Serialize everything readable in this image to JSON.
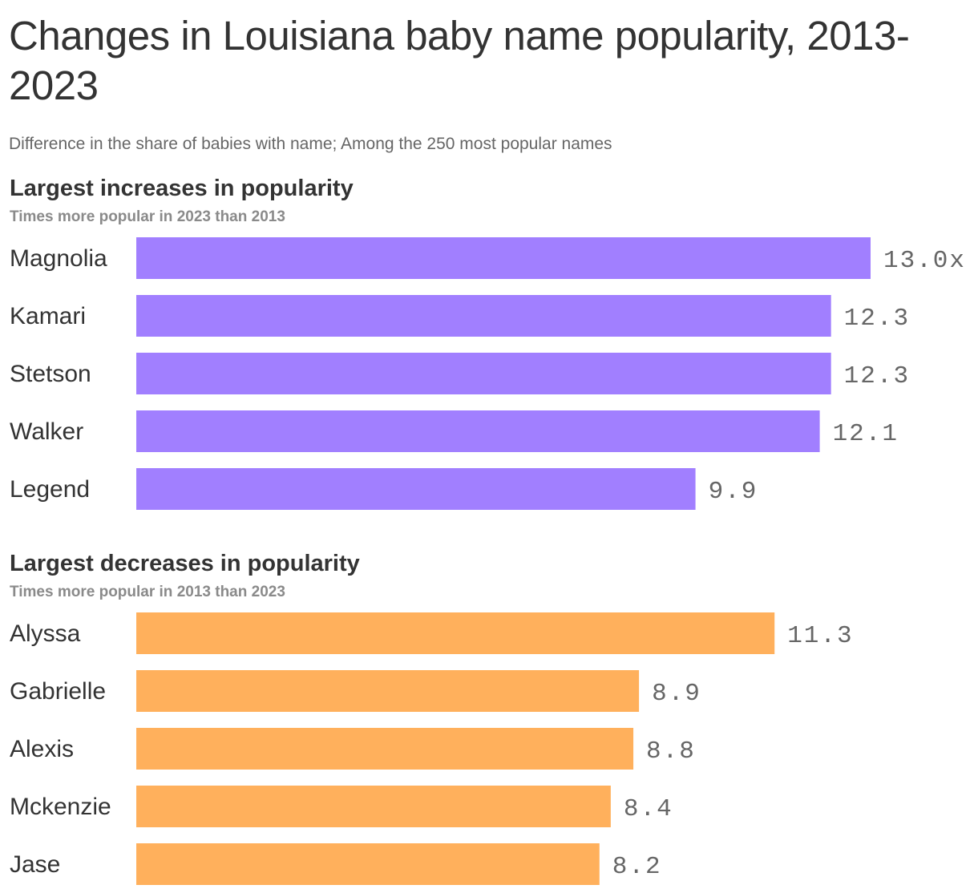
{
  "title": "Changes in Louisiana baby name popularity, 2013-2023",
  "subtitle": "Difference in the share of babies with name; Among the 250 most popular names",
  "colors": {
    "increase": "#a17fff",
    "decrease": "#ffb05c",
    "text": "#333333",
    "value_text": "#666666"
  },
  "chart_data": [
    {
      "type": "bar",
      "orientation": "horizontal",
      "title": "Largest increases in popularity",
      "subtitle": "Times more popular in 2023 than 2013",
      "categories": [
        "Magnolia",
        "Kamari",
        "Stetson",
        "Walker",
        "Legend"
      ],
      "values": [
        13.0,
        12.3,
        12.3,
        12.1,
        9.9
      ],
      "value_labels": [
        "13.0x",
        "12.3",
        "12.3",
        "12.1",
        "9.9"
      ],
      "xlim": [
        0,
        13.0
      ],
      "grid": false,
      "color": "#a17fff"
    },
    {
      "type": "bar",
      "orientation": "horizontal",
      "title": "Largest decreases in popularity",
      "subtitle": "Times more popular in 2013 than 2023",
      "categories": [
        "Alyssa",
        "Gabrielle",
        "Alexis",
        "Mckenzie",
        "Jase"
      ],
      "values": [
        11.3,
        8.9,
        8.8,
        8.4,
        8.2
      ],
      "value_labels": [
        "11.3",
        "8.9",
        "8.8",
        "8.4",
        "8.2"
      ],
      "xlim": [
        0,
        13.0
      ],
      "grid": false,
      "color": "#ffb05c"
    }
  ]
}
